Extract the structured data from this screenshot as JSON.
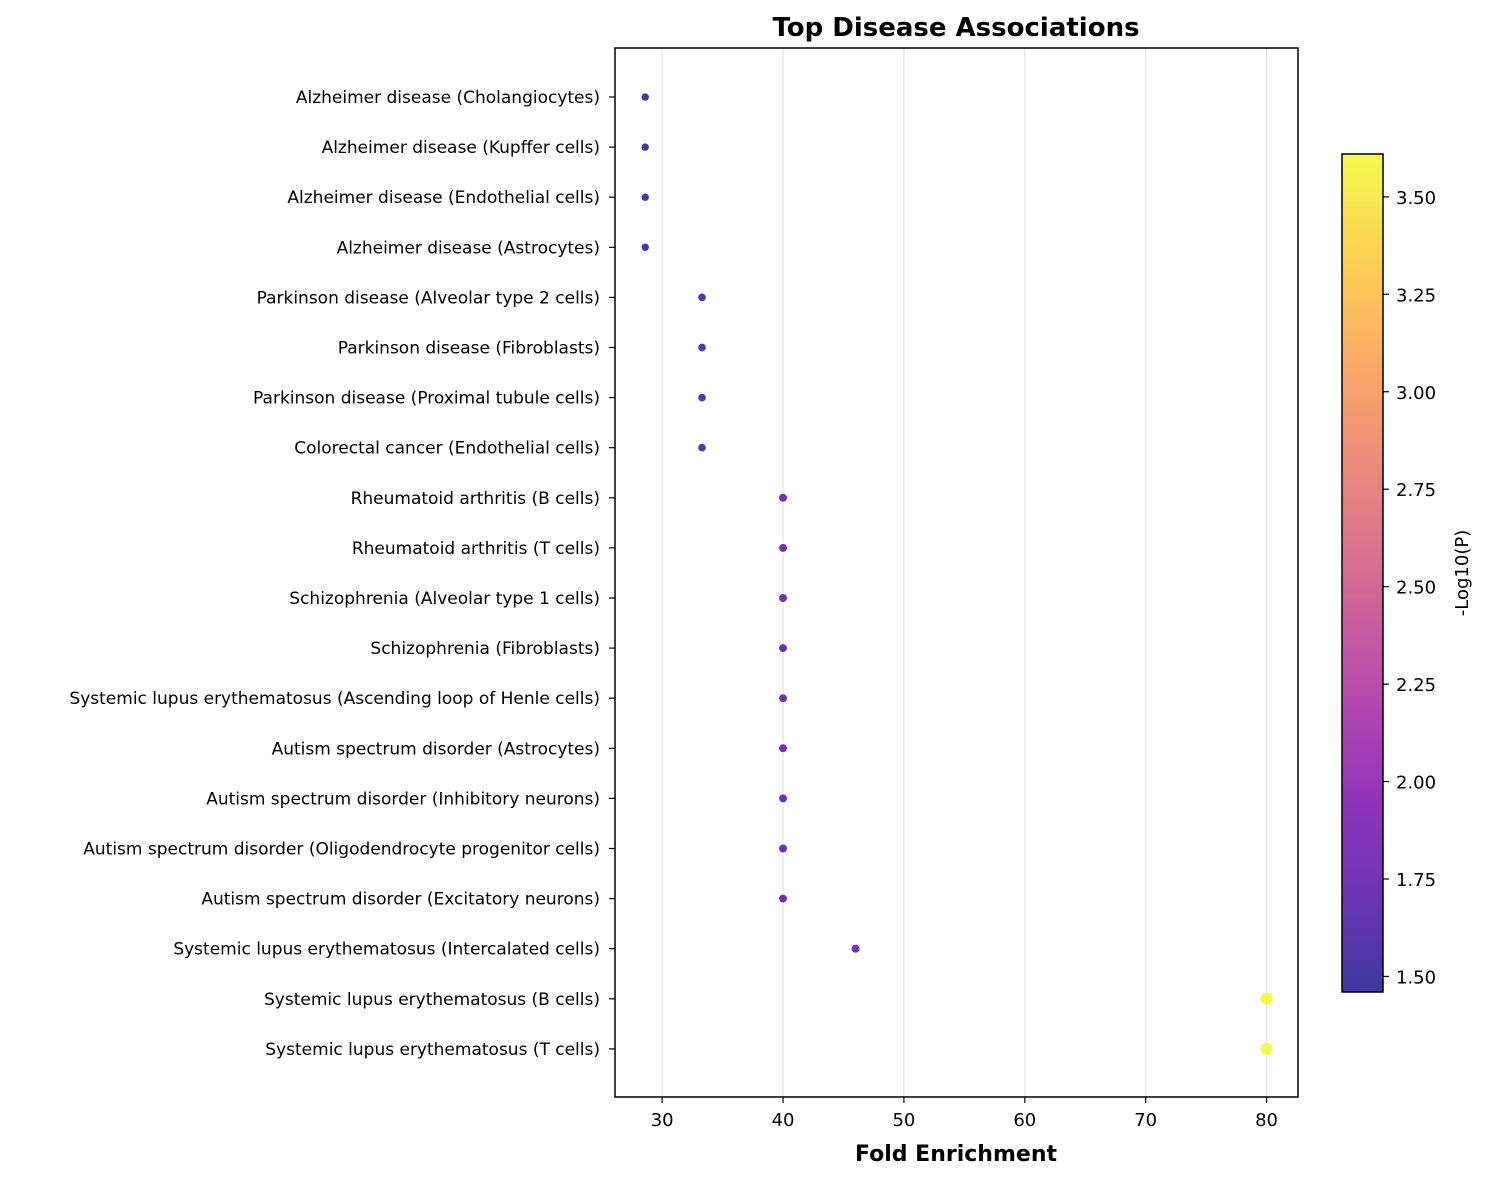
{
  "chart_data": {
    "type": "scatter",
    "title": "Top Disease Associations",
    "xlabel": "Fold Enrichment",
    "ylabel": "",
    "xlim": [
      26.1,
      82.6
    ],
    "xticks": [
      30,
      40,
      50,
      60,
      70,
      80
    ],
    "grid": "vertical",
    "categories": [
      "Alzheimer disease (Cholangiocytes)",
      "Alzheimer disease (Kupffer cells)",
      "Alzheimer disease (Endothelial cells)",
      "Alzheimer disease (Astrocytes)",
      "Parkinson disease (Alveolar type 2 cells)",
      "Parkinson disease (Fibroblasts)",
      "Parkinson disease (Proximal tubule cells)",
      "Colorectal cancer (Endothelial cells)",
      "Rheumatoid arthritis (B cells)",
      "Rheumatoid arthritis (T cells)",
      "Schizophrenia (Alveolar type 1 cells)",
      "Schizophrenia (Fibroblasts)",
      "Systemic lupus erythematosus (Ascending loop of Henle cells)",
      "Autism spectrum disorder (Astrocytes)",
      "Autism spectrum disorder (Inhibitory neurons)",
      "Autism spectrum disorder (Oligodendrocyte progenitor cells)",
      "Autism spectrum disorder (Excitatory neurons)",
      "Systemic lupus erythematosus (Intercalated cells)",
      "Systemic lupus erythematosus (B cells)",
      "Systemic lupus erythematosus (T cells)"
    ],
    "fold_enrichment": [
      28.6,
      28.6,
      28.6,
      28.6,
      33.3,
      33.3,
      33.3,
      33.3,
      40,
      40,
      40,
      40,
      40,
      40,
      40,
      40,
      40,
      46,
      80,
      80
    ],
    "neg_log10_p": [
      1.47,
      1.47,
      1.47,
      1.47,
      1.6,
      1.6,
      1.6,
      1.6,
      1.72,
      1.72,
      1.72,
      1.72,
      1.72,
      1.72,
      1.72,
      1.72,
      1.72,
      1.78,
      3.6,
      3.6
    ],
    "colorbar": {
      "label": "-Log10(P)",
      "range": [
        1.46,
        3.61
      ],
      "ticks": [
        "1.50",
        "1.75",
        "2.00",
        "2.25",
        "2.50",
        "2.75",
        "3.00",
        "3.25",
        "3.50"
      ],
      "colormap": "plasma",
      "colors": [
        "#0d0887",
        "#46039f",
        "#7201a8",
        "#9c179e",
        "#bd3786",
        "#d8576b",
        "#ed7953",
        "#fb9f3a",
        "#fdca26",
        "#f0f921"
      ]
    },
    "marker_alpha": 0.8,
    "marker_edge": "#ffffff"
  }
}
